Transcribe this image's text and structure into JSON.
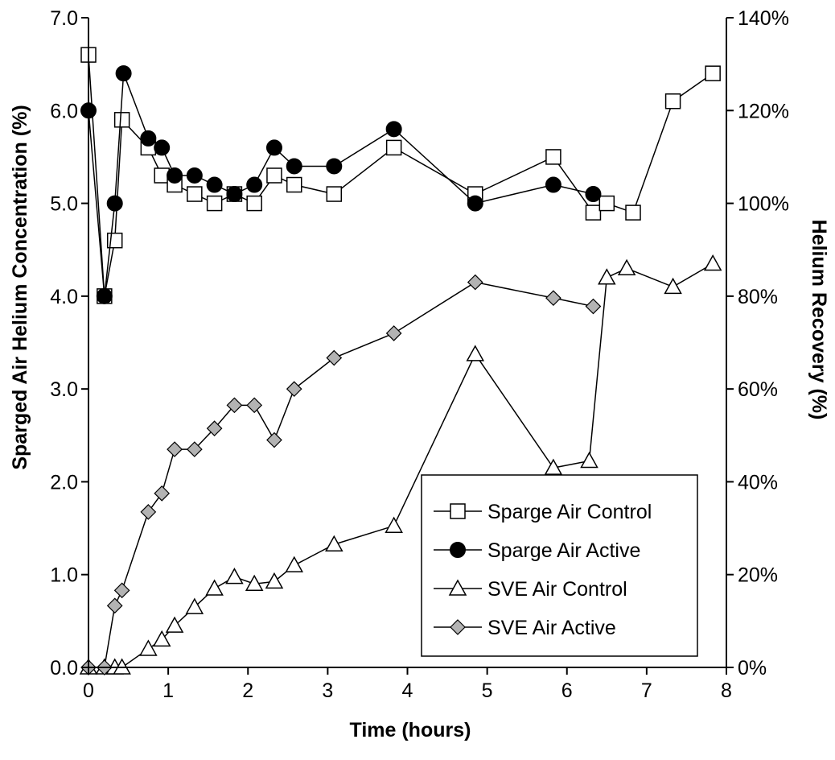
{
  "chart_data": {
    "type": "line",
    "xlabel": "Time (hours)",
    "ylabel_left": "Sparged Air Helium Concentration (%)",
    "ylabel_right": "Helium Recovery (%)",
    "xlim": [
      0,
      8
    ],
    "ylim_left": [
      0,
      7
    ],
    "ylim_right": [
      0,
      140
    ],
    "x_ticks": [
      "0",
      "1",
      "2",
      "3",
      "4",
      "5",
      "6",
      "7",
      "8"
    ],
    "y_left_ticks": [
      "0.0",
      "1.0",
      "2.0",
      "3.0",
      "4.0",
      "5.0",
      "6.0",
      "7.0"
    ],
    "y_right_ticks": [
      "0%",
      "20%",
      "40%",
      "60%",
      "80%",
      "100%",
      "120%",
      "140%"
    ],
    "grid": false,
    "legend_position": "bottom-right",
    "series": [
      {
        "name": "Sparge Air Control",
        "axis": "left",
        "marker": "open-square",
        "x": [
          0,
          0.2,
          0.33,
          0.42,
          0.75,
          0.92,
          1.08,
          1.33,
          1.58,
          1.83,
          2.08,
          2.33,
          2.58,
          3.08,
          3.83,
          4.85,
          5.83,
          6.33,
          6.5,
          6.83,
          7.33,
          7.83
        ],
        "y": [
          6.6,
          4.0,
          4.6,
          5.9,
          5.6,
          5.3,
          5.2,
          5.1,
          5.0,
          5.1,
          5.0,
          5.3,
          5.2,
          5.1,
          5.6,
          5.1,
          5.5,
          4.9,
          5.0,
          4.9,
          6.1,
          6.4
        ]
      },
      {
        "name": "Sparge Air Active",
        "axis": "left",
        "marker": "filled-circle",
        "x": [
          0,
          0.2,
          0.33,
          0.44,
          0.75,
          0.92,
          1.08,
          1.33,
          1.58,
          1.83,
          2.08,
          2.33,
          2.58,
          3.08,
          3.83,
          4.85,
          5.83,
          6.33
        ],
        "y": [
          6.0,
          4.0,
          5.0,
          6.4,
          5.7,
          5.6,
          5.3,
          5.3,
          5.2,
          5.1,
          5.2,
          5.6,
          5.4,
          5.4,
          5.8,
          5.0,
          5.2,
          5.1
        ]
      },
      {
        "name": "SVE Air Control",
        "axis": "right",
        "marker": "open-triangle",
        "x": [
          0,
          0.2,
          0.33,
          0.42,
          0.75,
          0.92,
          1.08,
          1.33,
          1.58,
          1.83,
          2.08,
          2.33,
          2.58,
          3.08,
          3.83,
          4.85,
          5.83,
          6.28,
          6.5,
          6.75,
          7.33,
          7.83
        ],
        "y": [
          0,
          0,
          0,
          0,
          4,
          6,
          9,
          13,
          17,
          19.5,
          18,
          18.5,
          22,
          26.5,
          30.5,
          67.5,
          43,
          44.5,
          84,
          86,
          82,
          87
        ]
      },
      {
        "name": "SVE Air Active",
        "axis": "right",
        "marker": "filled-diamond",
        "x": [
          0,
          0.2,
          0.33,
          0.42,
          0.75,
          0.92,
          1.08,
          1.33,
          1.58,
          1.83,
          2.08,
          2.33,
          2.58,
          3.08,
          3.83,
          4.85,
          5.83,
          6.33
        ],
        "y": [
          0,
          0,
          13.3,
          16.6,
          33.5,
          37.5,
          47,
          47,
          51.5,
          56.5,
          56.5,
          49,
          60,
          66.7,
          72,
          83,
          79.6,
          77.8
        ]
      }
    ]
  }
}
